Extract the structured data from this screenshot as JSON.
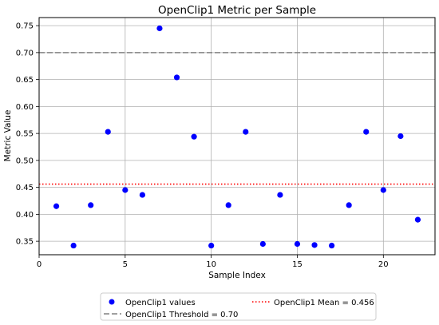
{
  "chart_data": {
    "type": "scatter",
    "title": "OpenClip1 Metric per Sample",
    "xlabel": "Sample Index",
    "ylabel": "Metric Value",
    "xlim": [
      0,
      23
    ],
    "ylim": [
      0.325,
      0.765
    ],
    "xticks": [
      0,
      5,
      10,
      15,
      20
    ],
    "xtick_labels": [
      "0",
      "5",
      "10",
      "15",
      "20"
    ],
    "yticks": [
      0.35,
      0.4,
      0.45,
      0.5,
      0.55,
      0.6,
      0.65,
      0.7,
      0.75
    ],
    "ytick_labels": [
      "0.35",
      "0.40",
      "0.45",
      "0.50",
      "0.55",
      "0.60",
      "0.65",
      "0.70",
      "0.75"
    ],
    "grid": true,
    "series": [
      {
        "name": "OpenClip1 values",
        "color": "#0000ff",
        "x": [
          1,
          2,
          3,
          4,
          5,
          6,
          7,
          8,
          9,
          10,
          11,
          12,
          13,
          14,
          15,
          16,
          17,
          18,
          19,
          20,
          21,
          22
        ],
        "y": [
          0.415,
          0.342,
          0.417,
          0.553,
          0.445,
          0.436,
          0.745,
          0.654,
          0.544,
          0.342,
          0.417,
          0.553,
          0.345,
          0.436,
          0.345,
          0.343,
          0.342,
          0.417,
          0.553,
          0.445,
          0.545,
          0.39
        ]
      }
    ],
    "threshold": {
      "label": "OpenClip1 Threshold = 0.70",
      "value": 0.7,
      "color": "#808080",
      "style": "dashed"
    },
    "mean": {
      "label": "OpenClip1 Mean = 0.456",
      "value": 0.456,
      "color": "#ff0000",
      "style": "dotted"
    },
    "legend_placement": "bottom-center"
  }
}
